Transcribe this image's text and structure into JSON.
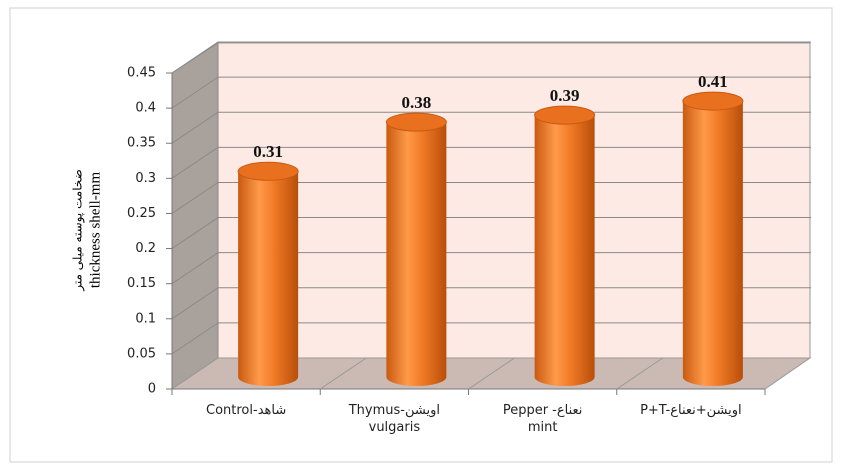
{
  "chart_data": {
    "type": "bar",
    "categories": [
      "Control-شاهد",
      "Thymus-اویشن\nvulgaris",
      "Pepper -نعناع\nmint",
      "P+T-اویشن+نعناع"
    ],
    "values": [
      0.31,
      0.38,
      0.39,
      0.41
    ],
    "color": "#e8701f",
    "ylabel": [
      "ضخامت پوسته میلی متر",
      "thickness shell-mm"
    ],
    "ylim": [
      0,
      0.45
    ],
    "yticks": [
      0,
      0.05,
      0.1,
      0.15,
      0.2,
      0.25,
      0.3,
      0.35,
      0.4,
      0.45
    ],
    "grid": true
  }
}
